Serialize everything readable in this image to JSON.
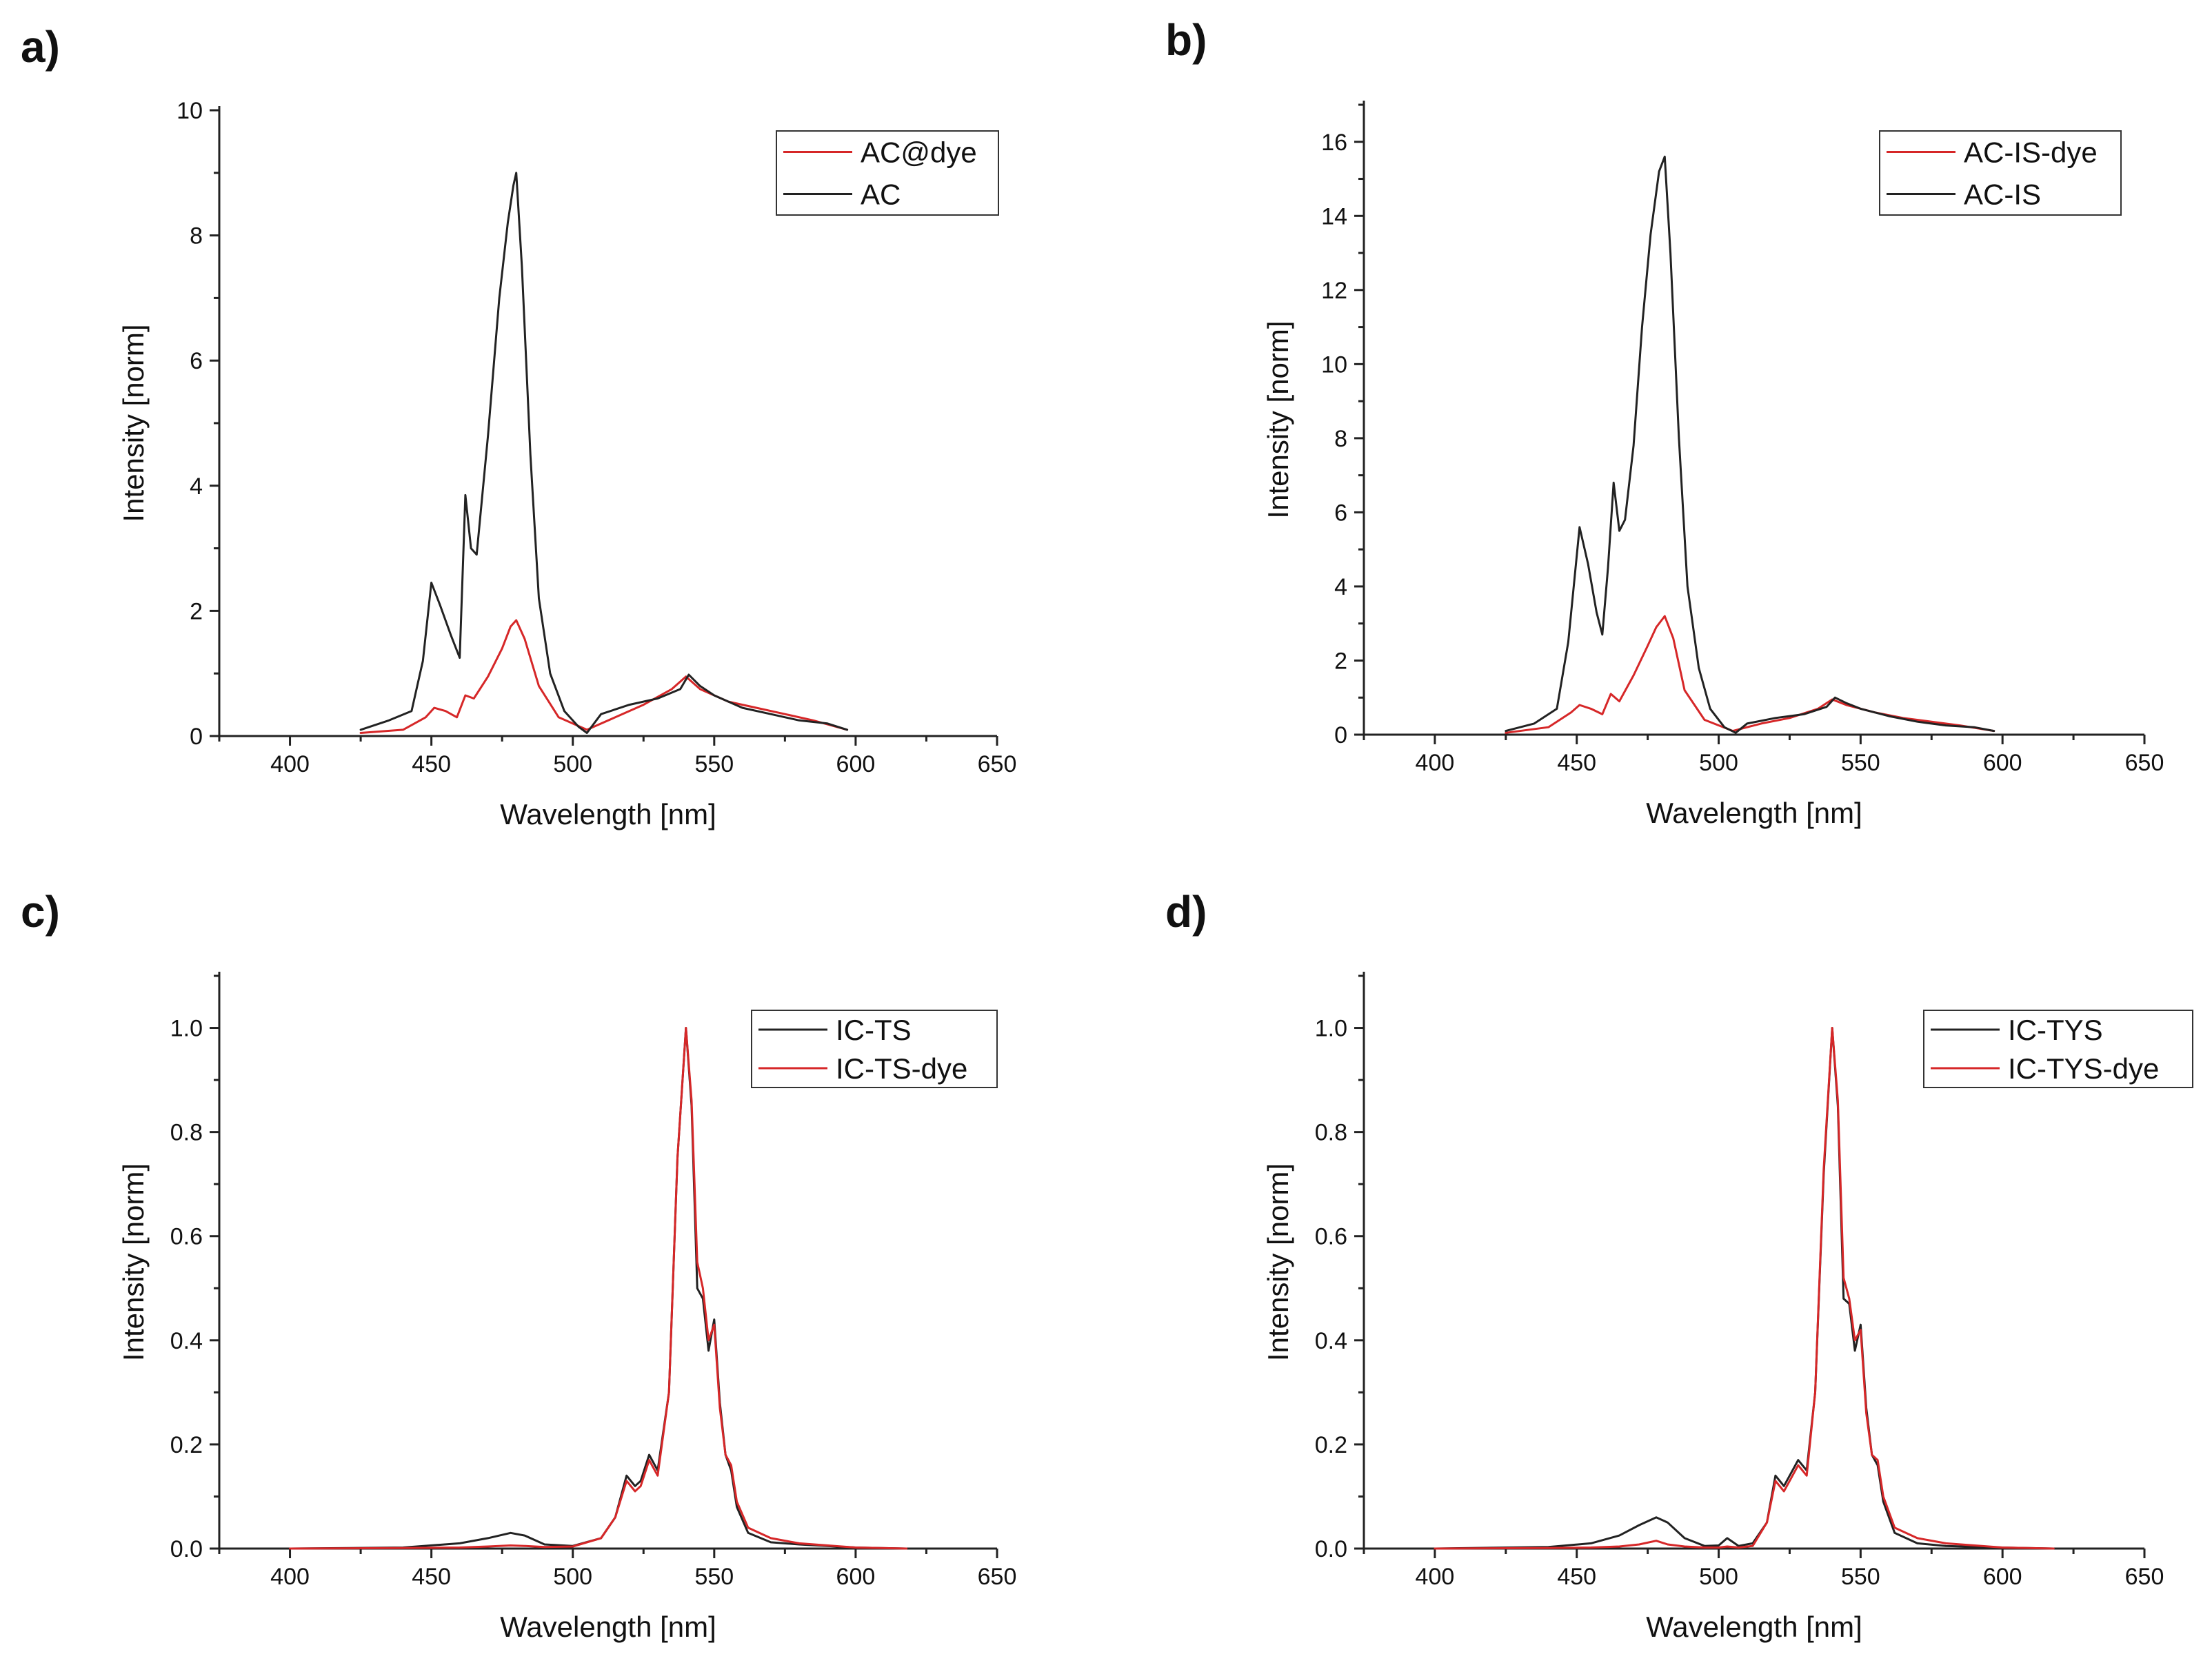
{
  "chart_data": [
    {
      "type": "line",
      "panel_label": "a)",
      "xlabel": "Wavelength [nm]",
      "ylabel": "Intensity [norm]",
      "xlim": [
        375,
        650
      ],
      "ylim": [
        0,
        10
      ],
      "xticks": [
        400,
        450,
        500,
        550,
        600,
        650
      ],
      "yticks": [
        0,
        2,
        4,
        6,
        8,
        10
      ],
      "ytick_labels": [
        "0",
        "2",
        "4",
        "6",
        "8",
        "10"
      ],
      "legend": "top-right",
      "series": [
        {
          "name": "AC@dye",
          "color": "#d62728",
          "x": [
            425,
            440,
            448,
            451,
            455,
            459,
            462,
            465,
            470,
            475,
            478,
            480,
            483,
            488,
            495,
            505,
            515,
            525,
            535,
            540,
            545,
            555,
            565,
            575,
            585,
            597
          ],
          "y": [
            0.05,
            0.1,
            0.3,
            0.45,
            0.4,
            0.3,
            0.65,
            0.6,
            0.95,
            1.4,
            1.75,
            1.85,
            1.55,
            0.8,
            0.3,
            0.1,
            0.3,
            0.5,
            0.75,
            0.95,
            0.75,
            0.55,
            0.45,
            0.35,
            0.25,
            0.1
          ]
        },
        {
          "name": "AC",
          "color": "#222222",
          "x": [
            425,
            435,
            443,
            447,
            450,
            453,
            457,
            460,
            462,
            464,
            466,
            470,
            474,
            477,
            479,
            480,
            482,
            485,
            488,
            492,
            497,
            502,
            505,
            510,
            520,
            530,
            538,
            541,
            545,
            550,
            560,
            570,
            580,
            590,
            597
          ],
          "y": [
            0.1,
            0.25,
            0.4,
            1.2,
            2.45,
            2.1,
            1.6,
            1.25,
            3.85,
            3.0,
            2.9,
            4.8,
            7.0,
            8.2,
            8.8,
            9.0,
            7.5,
            4.5,
            2.2,
            1.0,
            0.4,
            0.15,
            0.05,
            0.35,
            0.5,
            0.6,
            0.75,
            0.98,
            0.8,
            0.65,
            0.45,
            0.35,
            0.25,
            0.2,
            0.1
          ]
        }
      ]
    },
    {
      "type": "line",
      "panel_label": "b)",
      "xlabel": "Wavelength [nm]",
      "ylabel": "Intensity [norm]",
      "xlim": [
        375,
        650
      ],
      "ylim": [
        0,
        17
      ],
      "xticks": [
        400,
        450,
        500,
        550,
        600,
        650
      ],
      "yticks": [
        0,
        2,
        4,
        6,
        8,
        10,
        12,
        14,
        16
      ],
      "ytick_labels": [
        "0",
        "2",
        "4",
        "6",
        "8",
        "10",
        "12",
        "14",
        "16"
      ],
      "legend": "top-right",
      "series": [
        {
          "name": "AC-IS-dye",
          "color": "#d62728",
          "x": [
            425,
            440,
            448,
            451,
            455,
            459,
            462,
            465,
            470,
            475,
            478,
            481,
            484,
            488,
            495,
            505,
            515,
            525,
            535,
            540,
            545,
            555,
            565,
            575,
            585,
            597
          ],
          "y": [
            0.05,
            0.2,
            0.6,
            0.8,
            0.7,
            0.55,
            1.1,
            0.9,
            1.6,
            2.4,
            2.9,
            3.2,
            2.6,
            1.2,
            0.4,
            0.1,
            0.3,
            0.45,
            0.7,
            0.95,
            0.8,
            0.6,
            0.45,
            0.35,
            0.25,
            0.1
          ]
        },
        {
          "name": "AC-IS",
          "color": "#222222",
          "x": [
            425,
            435,
            443,
            447,
            451,
            454,
            457,
            459,
            461,
            463,
            465,
            467,
            470,
            473,
            476,
            479,
            481,
            483,
            486,
            489,
            493,
            497,
            502,
            506,
            510,
            520,
            530,
            538,
            541,
            545,
            550,
            560,
            570,
            580,
            590,
            597
          ],
          "y": [
            0.1,
            0.3,
            0.7,
            2.5,
            5.6,
            4.6,
            3.3,
            2.7,
            4.5,
            6.8,
            5.5,
            5.8,
            7.8,
            11.0,
            13.5,
            15.2,
            15.6,
            13.0,
            8.0,
            4.0,
            1.8,
            0.7,
            0.2,
            0.05,
            0.3,
            0.45,
            0.55,
            0.75,
            1.0,
            0.85,
            0.7,
            0.5,
            0.35,
            0.25,
            0.2,
            0.1
          ]
        }
      ]
    },
    {
      "type": "line",
      "panel_label": "c)",
      "xlabel": "Wavelength [nm]",
      "ylabel": "Intensity [norm]",
      "xlim": [
        375,
        650
      ],
      "ylim": [
        0,
        1.1
      ],
      "xticks": [
        400,
        450,
        500,
        550,
        600,
        650
      ],
      "yticks": [
        0,
        0.2,
        0.4,
        0.6,
        0.8,
        1.0
      ],
      "ytick_labels": [
        "0.0",
        "0.2",
        "0.4",
        "0.6",
        "0.8",
        "1.0"
      ],
      "legend": "top-right",
      "series": [
        {
          "name": "IC-TS",
          "color": "#222222",
          "x": [
            400,
            440,
            460,
            470,
            478,
            483,
            490,
            500,
            510,
            515,
            519,
            522,
            524,
            527,
            530,
            534,
            537,
            540,
            542,
            544,
            546,
            548,
            550,
            552,
            554,
            556,
            558,
            562,
            570,
            580,
            600,
            618
          ],
          "y": [
            0.0,
            0.002,
            0.01,
            0.02,
            0.03,
            0.025,
            0.008,
            0.005,
            0.02,
            0.06,
            0.14,
            0.12,
            0.13,
            0.18,
            0.15,
            0.3,
            0.75,
            1.0,
            0.85,
            0.5,
            0.48,
            0.38,
            0.44,
            0.28,
            0.18,
            0.15,
            0.08,
            0.03,
            0.012,
            0.008,
            0.002,
            0.0
          ]
        },
        {
          "name": "IC-TS-dye",
          "color": "#d62728",
          "x": [
            400,
            440,
            460,
            470,
            478,
            483,
            490,
            500,
            510,
            515,
            519,
            522,
            524,
            527,
            530,
            534,
            537,
            540,
            542,
            544,
            546,
            548,
            550,
            552,
            554,
            556,
            558,
            562,
            570,
            580,
            600,
            618
          ],
          "y": [
            0.0,
            0.001,
            0.002,
            0.004,
            0.006,
            0.005,
            0.003,
            0.004,
            0.02,
            0.06,
            0.13,
            0.11,
            0.12,
            0.17,
            0.14,
            0.3,
            0.75,
            1.0,
            0.86,
            0.55,
            0.5,
            0.4,
            0.43,
            0.27,
            0.18,
            0.16,
            0.09,
            0.04,
            0.02,
            0.01,
            0.002,
            0.0
          ]
        }
      ]
    },
    {
      "type": "line",
      "panel_label": "d)",
      "xlabel": "Wavelength [nm]",
      "ylabel": "Intensity [norm]",
      "xlim": [
        375,
        650
      ],
      "ylim": [
        0,
        1.1
      ],
      "xticks": [
        400,
        450,
        500,
        550,
        600,
        650
      ],
      "yticks": [
        0,
        0.2,
        0.4,
        0.6,
        0.8,
        1.0
      ],
      "ytick_labels": [
        "0.0",
        "0.2",
        "0.4",
        "0.6",
        "0.8",
        "1.0"
      ],
      "legend": "top-right",
      "series": [
        {
          "name": "IC-TYS",
          "color": "#222222",
          "x": [
            400,
            440,
            455,
            465,
            472,
            478,
            482,
            488,
            495,
            500,
            503,
            507,
            512,
            517,
            520,
            523,
            525,
            528,
            531,
            534,
            537,
            540,
            542,
            544,
            546,
            548,
            550,
            552,
            554,
            556,
            558,
            562,
            570,
            580,
            600,
            618
          ],
          "y": [
            0.0,
            0.003,
            0.01,
            0.025,
            0.045,
            0.06,
            0.05,
            0.02,
            0.005,
            0.006,
            0.02,
            0.005,
            0.01,
            0.05,
            0.14,
            0.12,
            0.14,
            0.17,
            0.15,
            0.3,
            0.72,
            1.0,
            0.85,
            0.48,
            0.47,
            0.38,
            0.43,
            0.27,
            0.18,
            0.16,
            0.09,
            0.03,
            0.01,
            0.005,
            0.002,
            0.0
          ]
        },
        {
          "name": "IC-TYS-dye",
          "color": "#d62728",
          "x": [
            400,
            440,
            455,
            465,
            472,
            478,
            482,
            488,
            495,
            500,
            503,
            507,
            512,
            517,
            520,
            523,
            525,
            528,
            531,
            534,
            537,
            540,
            542,
            544,
            546,
            548,
            550,
            552,
            554,
            556,
            558,
            562,
            570,
            580,
            600,
            618
          ],
          "y": [
            0.0,
            0.001,
            0.002,
            0.004,
            0.008,
            0.015,
            0.008,
            0.004,
            0.002,
            0.002,
            0.004,
            0.002,
            0.005,
            0.05,
            0.13,
            0.11,
            0.13,
            0.16,
            0.14,
            0.3,
            0.73,
            1.0,
            0.86,
            0.52,
            0.48,
            0.4,
            0.42,
            0.26,
            0.18,
            0.17,
            0.1,
            0.04,
            0.02,
            0.01,
            0.002,
            0.0
          ]
        }
      ]
    }
  ]
}
